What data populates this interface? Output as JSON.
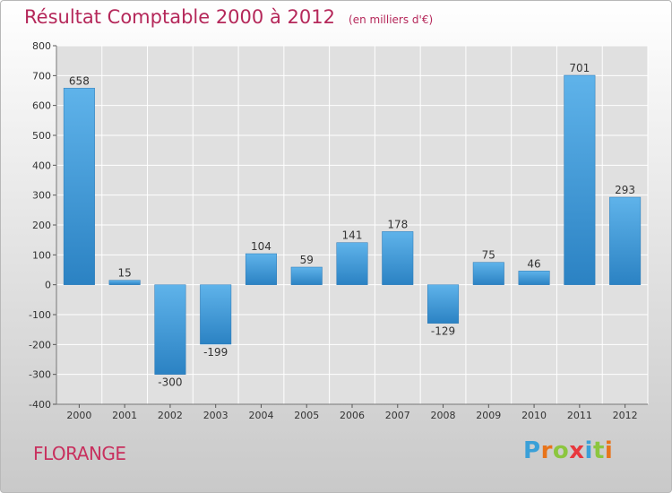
{
  "header": {
    "title": "Résultat Comptable 2000 à 2012",
    "subtitle": "(en milliers d'€)"
  },
  "footer": {
    "commune": "FLORANGE",
    "logo": [
      "P",
      "r",
      "o",
      "x",
      "i",
      "t",
      "i"
    ],
    "logo_colors": [
      "#3aa0d8",
      "#e8741a",
      "#8cc63f",
      "#e8383d",
      "#3aa0d8",
      "#8cc63f",
      "#e8741a"
    ]
  },
  "colors": {
    "bar_top": "#5fb3ea",
    "bar_bottom": "#2b82c3",
    "plot_bg": "#e0e0e0",
    "grid": "#ffffff",
    "title": "#b5285a"
  },
  "chart_data": {
    "type": "bar",
    "categories": [
      "2000",
      "2001",
      "2002",
      "2003",
      "2004",
      "2005",
      "2006",
      "2007",
      "2008",
      "2009",
      "2010",
      "2011",
      "2012"
    ],
    "values": [
      658,
      15,
      -300,
      -199,
      104,
      59,
      141,
      178,
      -129,
      75,
      46,
      701,
      293
    ],
    "labels": [
      "658",
      "15",
      "-300",
      "-199",
      "104",
      "59",
      "141",
      "178",
      "-129",
      "75",
      "46",
      "701",
      "293"
    ],
    "ylim": [
      -400,
      800
    ],
    "yticks": [
      -400,
      -300,
      -200,
      -100,
      0,
      100,
      200,
      300,
      400,
      500,
      600,
      700,
      800
    ],
    "ytick_labels": [
      "-400",
      "-300",
      "-200",
      "-100",
      "0",
      "100",
      "200",
      "300",
      "400",
      "500",
      "600",
      "700",
      "800"
    ],
    "grid": true,
    "title": "Résultat Comptable 2000 à 2012",
    "xlabel": "",
    "ylabel": ""
  }
}
